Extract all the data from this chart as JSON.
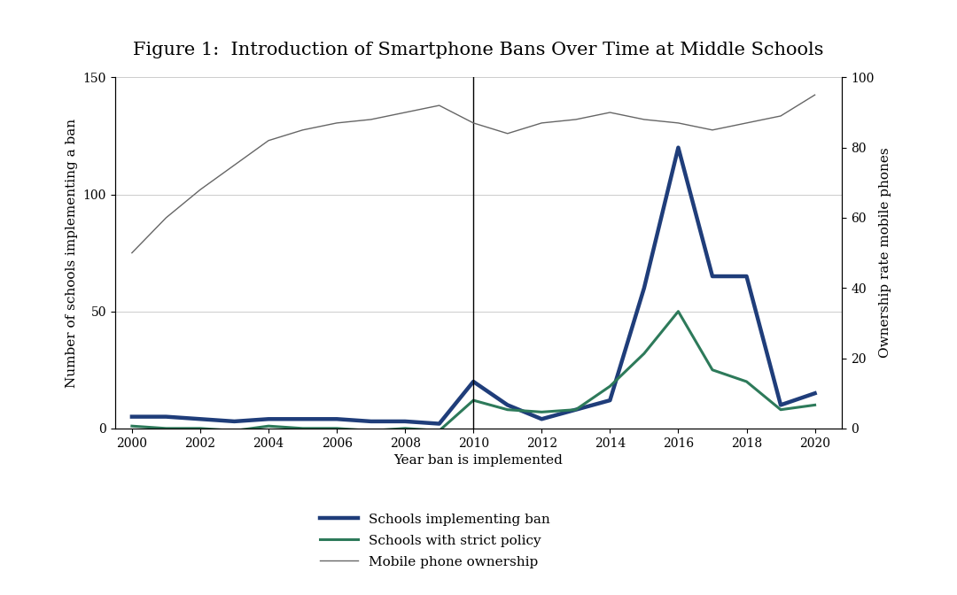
{
  "title": "Figure 1:  Introduction of Smartphone Bans Over Time at Middle Schools",
  "xlabel": "Year ban is implemented",
  "ylabel_left": "Number of schools implementing a ban",
  "ylabel_right": "Ownership rate mobile phones",
  "years": [
    2000,
    2001,
    2002,
    2003,
    2004,
    2005,
    2006,
    2007,
    2008,
    2009,
    2010,
    2011,
    2012,
    2013,
    2014,
    2015,
    2016,
    2017,
    2018,
    2019,
    2020
  ],
  "schools_ban": [
    5,
    5,
    4,
    3,
    4,
    4,
    4,
    3,
    3,
    2,
    20,
    10,
    4,
    8,
    12,
    60,
    120,
    65,
    65,
    10,
    15
  ],
  "schools_strict": [
    1,
    0,
    0,
    -1,
    1,
    0,
    0,
    -1,
    0,
    -1,
    12,
    8,
    7,
    8,
    18,
    32,
    50,
    25,
    20,
    8,
    10
  ],
  "mobile_ownership": [
    50,
    60,
    68,
    75,
    82,
    85,
    87,
    88,
    90,
    92,
    87,
    84,
    87,
    88,
    90,
    88,
    87,
    85,
    87,
    89,
    95
  ],
  "vline_x": 2010,
  "color_ban": "#1f3d7a",
  "color_strict": "#2d7a5a",
  "color_mobile": "#666666",
  "ylim_left": [
    0,
    150
  ],
  "ylim_right": [
    0,
    100
  ],
  "yticks_left": [
    0,
    50,
    100,
    150
  ],
  "yticks_right": [
    0,
    20,
    40,
    60,
    80,
    100
  ],
  "xticks": [
    2000,
    2002,
    2004,
    2006,
    2008,
    2010,
    2012,
    2014,
    2016,
    2018,
    2020
  ],
  "legend_labels": [
    "Schools implementing ban",
    "Schools with strict policy",
    "Mobile phone ownership"
  ],
  "linewidth_ban": 3.2,
  "linewidth_strict": 2.2,
  "linewidth_mobile": 1.0,
  "title_fontsize": 15,
  "label_fontsize": 11,
  "tick_fontsize": 10,
  "legend_fontsize": 11,
  "grid_color": "#cccccc",
  "xlim": [
    1999.5,
    2020.8
  ]
}
